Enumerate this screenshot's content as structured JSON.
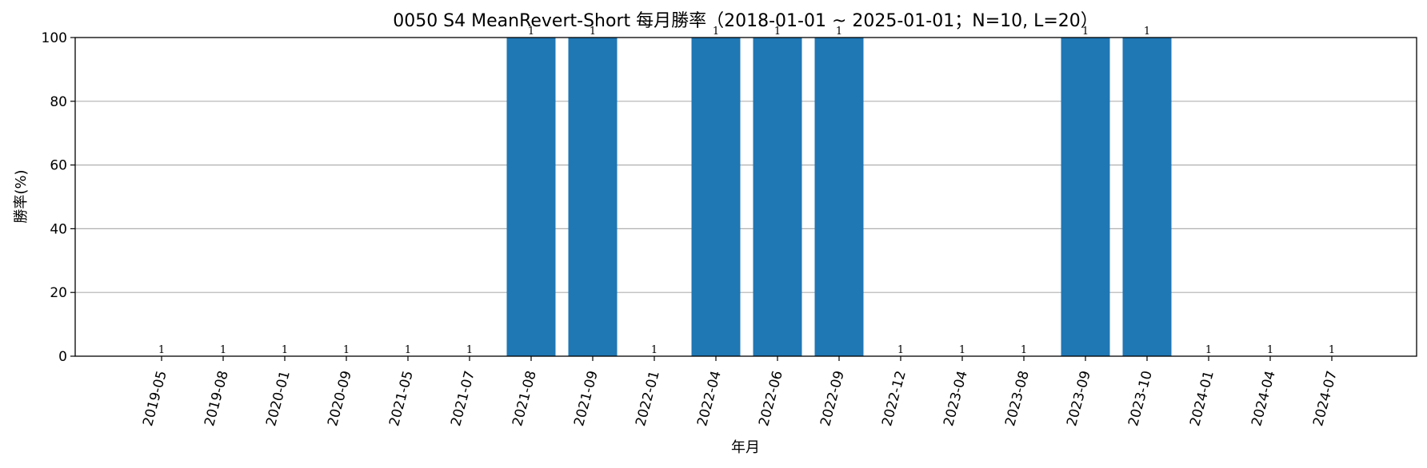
{
  "chart_data": {
    "type": "bar",
    "title": "0050 S4 MeanRevert-Short 每月勝率（2018-01-01 ~ 2025-01-01；N=10, L=20）",
    "xlabel": "年月",
    "ylabel": "勝率(%)",
    "ylim": [
      0,
      100
    ],
    "yticks": [
      0,
      20,
      40,
      60,
      80,
      100
    ],
    "grid": "y",
    "bar_color": "#1f77b4",
    "categories": [
      "2019-05",
      "2019-08",
      "2020-01",
      "2020-09",
      "2021-05",
      "2021-07",
      "2021-08",
      "2021-09",
      "2022-01",
      "2022-04",
      "2022-06",
      "2022-09",
      "2022-12",
      "2023-04",
      "2023-08",
      "2023-09",
      "2023-10",
      "2024-01",
      "2024-04",
      "2024-07"
    ],
    "values": [
      0,
      0,
      0,
      0,
      0,
      0,
      100,
      100,
      0,
      100,
      100,
      100,
      0,
      0,
      0,
      100,
      100,
      0,
      0,
      0
    ],
    "data_labels": [
      "1",
      "1",
      "1",
      "1",
      "1",
      "1",
      "1",
      "1",
      "1",
      "1",
      "1",
      "1",
      "1",
      "1",
      "1",
      "1",
      "1",
      "1",
      "1",
      "1"
    ]
  }
}
